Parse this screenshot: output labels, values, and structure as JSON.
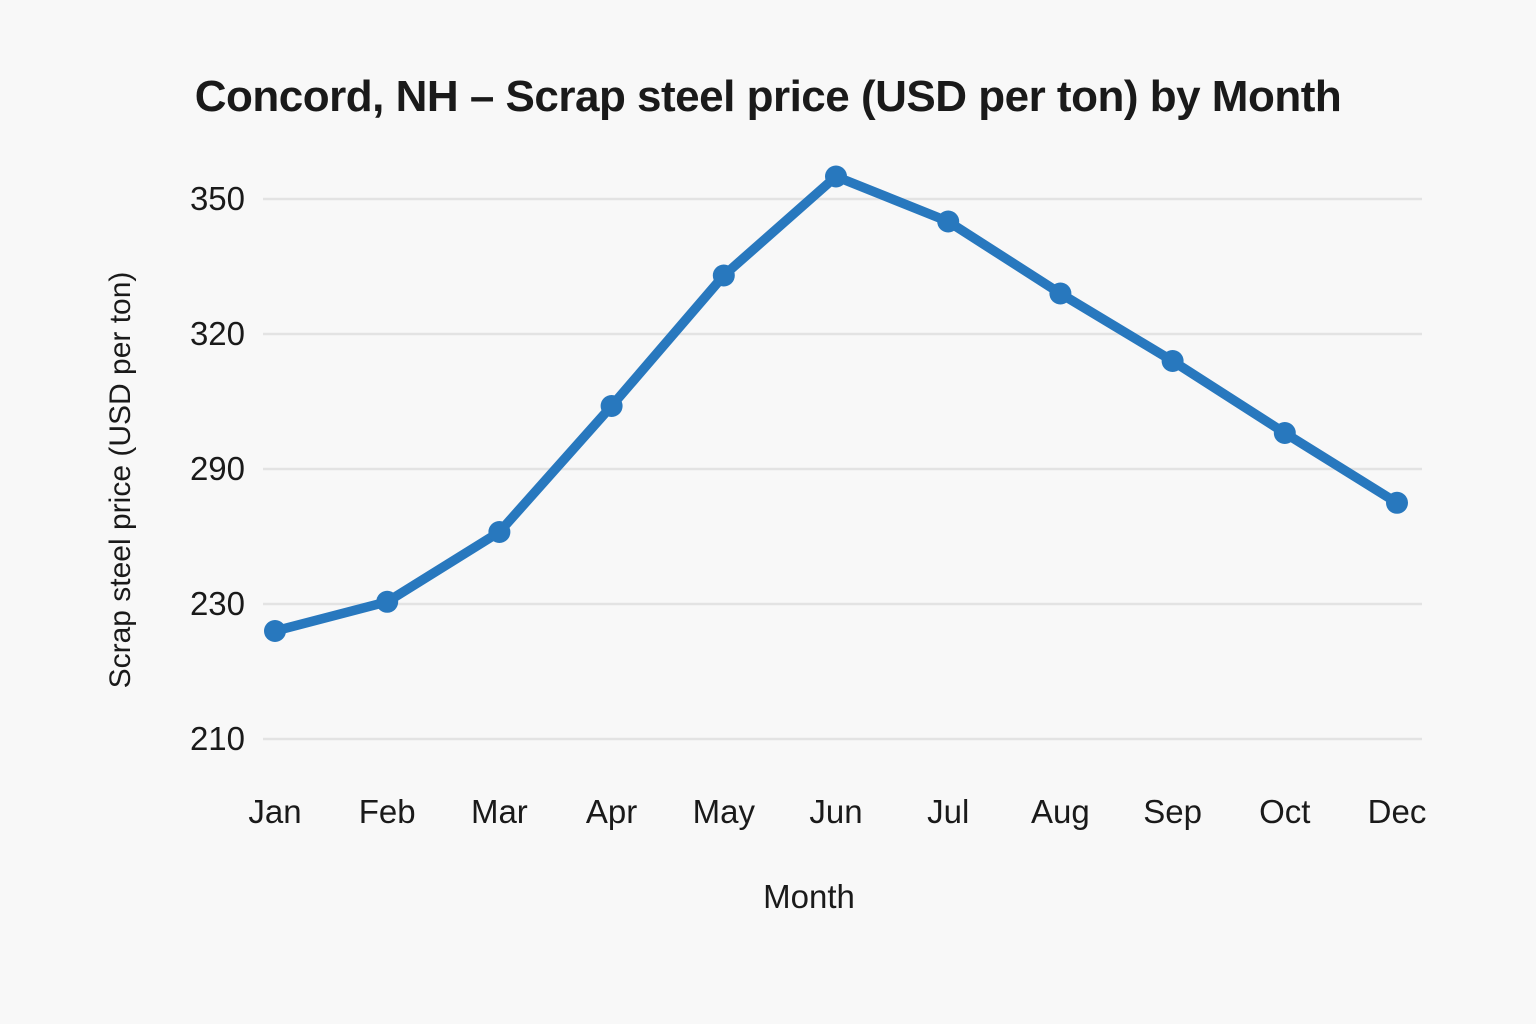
{
  "figure": {
    "title": "Concord, NH – Scrap steel price (USD per ton) by Month",
    "x_axis_title": "Month",
    "y_axis_title": "Scrap steel price (USD per ton)"
  },
  "chart_data": {
    "type": "line",
    "title": "Concord, NH – Scrap steel price (USD per ton) by Month",
    "xlabel": "Month",
    "ylabel": "Scrap steel price (USD per ton)",
    "categories": [
      "Jan",
      "Feb",
      "Mar",
      "Apr",
      "May",
      "Jun",
      "Jul",
      "Aug",
      "Sep",
      "Oct",
      "Dec"
    ],
    "series": [
      {
        "name": "Scrap steel price (USD per ton)",
        "values": [
          226,
          231,
          262,
          304,
          333,
          355,
          345,
          329,
          314,
          298,
          275
        ]
      }
    ],
    "y_ticks": [
      350,
      320,
      290,
      230,
      210
    ],
    "axis_notes": "horizontal gridlines only; y tick gridlines evenly spaced in pixels but non-linear in value; no axis lines; markers on every point",
    "legend": false,
    "grid": "horizontal"
  },
  "colors": {
    "line": "#2878BE",
    "marker": "#2878BE",
    "grid": "#e3e3e3",
    "text": "#1a1a1a",
    "background": "#f8f8f8"
  }
}
